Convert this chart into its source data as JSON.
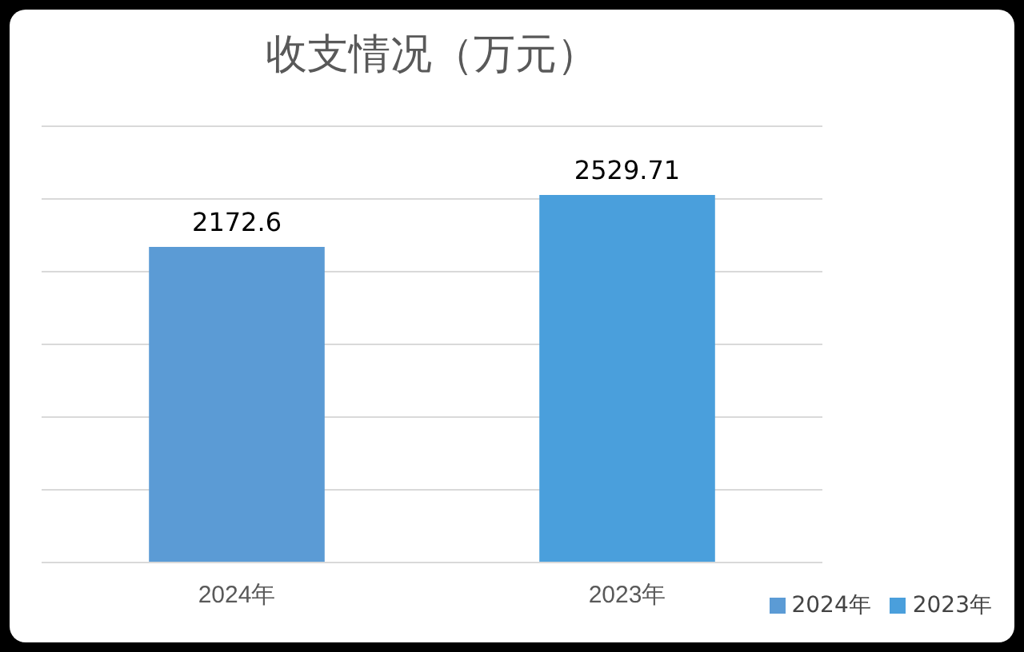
{
  "chart_data": {
    "type": "bar",
    "title": "收支情况（万元）",
    "categories": [
      "2024年",
      "2023年"
    ],
    "series": [
      {
        "name": "2024年",
        "color": "#5b9bd5",
        "values": [
          2172.6,
          null
        ]
      },
      {
        "name": "2023年",
        "color": "#4a9fdc",
        "values": [
          null,
          2529.71
        ]
      }
    ],
    "tick_labels": "x",
    "grid": "y",
    "legend": "bottom right",
    "data_labels": true
  }
}
